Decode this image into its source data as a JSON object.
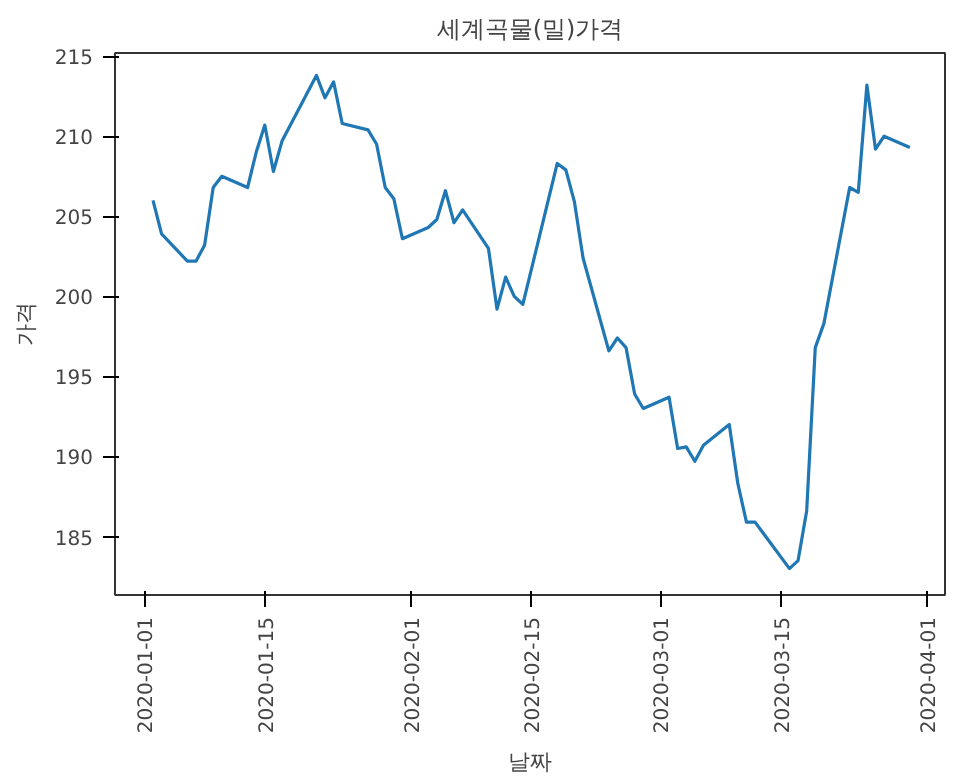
{
  "chart_data": {
    "type": "line",
    "title": "세계곡물(밀)가격",
    "xlabel": "날짜",
    "ylabel": "가격",
    "x": [
      "2020-01-02",
      "2020-01-03",
      "2020-01-06",
      "2020-01-07",
      "2020-01-08",
      "2020-01-09",
      "2020-01-10",
      "2020-01-13",
      "2020-01-14",
      "2020-01-15",
      "2020-01-16",
      "2020-01-17",
      "2020-01-21",
      "2020-01-22",
      "2020-01-23",
      "2020-01-24",
      "2020-01-27",
      "2020-01-28",
      "2020-01-29",
      "2020-01-30",
      "2020-01-31",
      "2020-02-03",
      "2020-02-04",
      "2020-02-05",
      "2020-02-06",
      "2020-02-07",
      "2020-02-10",
      "2020-02-11",
      "2020-02-12",
      "2020-02-13",
      "2020-02-14",
      "2020-02-18",
      "2020-02-19",
      "2020-02-20",
      "2020-02-21",
      "2020-02-24",
      "2020-02-25",
      "2020-02-26",
      "2020-02-27",
      "2020-02-28",
      "2020-03-02",
      "2020-03-03",
      "2020-03-04",
      "2020-03-05",
      "2020-03-06",
      "2020-03-09",
      "2020-03-10",
      "2020-03-11",
      "2020-03-12",
      "2020-03-16",
      "2020-03-17",
      "2020-03-18",
      "2020-03-19",
      "2020-03-20",
      "2020-03-23",
      "2020-03-24",
      "2020-03-25",
      "2020-03-26",
      "2020-03-27",
      "2020-03-30"
    ],
    "series": [
      {
        "color": "#1f77b4",
        "values": [
          206.0,
          203.9,
          202.2,
          202.2,
          203.2,
          206.8,
          207.5,
          206.8,
          209.0,
          210.7,
          207.8,
          209.7,
          213.8,
          212.4,
          213.4,
          210.8,
          210.4,
          209.5,
          206.8,
          206.1,
          203.6,
          204.3,
          204.8,
          206.6,
          204.6,
          205.4,
          203.0,
          199.2,
          201.2,
          200.0,
          199.5,
          208.3,
          207.9,
          205.9,
          202.4,
          196.6,
          197.4,
          196.8,
          193.9,
          193.0,
          193.7,
          190.5,
          190.6,
          189.7,
          190.7,
          192.0,
          188.3,
          185.9,
          185.9,
          183.0,
          183.5,
          186.6,
          196.8,
          198.3,
          206.8,
          206.5,
          213.2,
          209.2,
          210.0,
          209.3
        ]
      }
    ],
    "ylim": [
      181.35,
      215.2
    ],
    "yticks": [
      185,
      190,
      195,
      200,
      205,
      210,
      215
    ],
    "xlim": [
      "2019-12-28T14:00",
      "2020-04-03T02:00"
    ],
    "xticks": [
      {
        "value": "2020-01-01",
        "label": "2020-01-01"
      },
      {
        "value": "2020-01-15",
        "label": "2020-01-15"
      },
      {
        "value": "2020-02-01",
        "label": "2020-02-01"
      },
      {
        "value": "2020-02-15",
        "label": "2020-02-15"
      },
      {
        "value": "2020-03-01",
        "label": "2020-03-01"
      },
      {
        "value": "2020-03-15",
        "label": "2020-03-15"
      },
      {
        "value": "2020-04-01",
        "label": "2020-04-01"
      }
    ],
    "grid": false
  }
}
